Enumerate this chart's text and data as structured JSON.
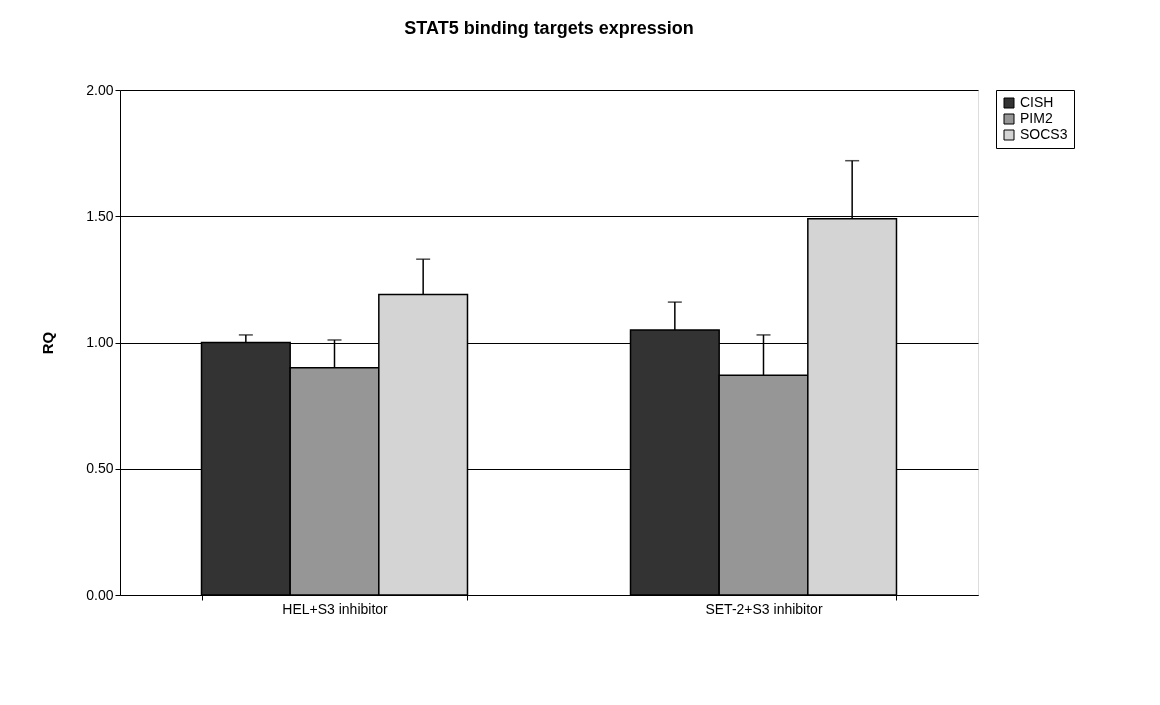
{
  "chart_data": {
    "type": "bar",
    "title": "STAT5 binding targets expression",
    "ylabel": "RQ",
    "categories": [
      "HEL+S3 inhibitor",
      "SET-2+S3 inhibitor"
    ],
    "series": [
      {
        "name": "CISH",
        "color": "#333333",
        "values": [
          1.0,
          1.05
        ],
        "errors": [
          [
            1.0,
            1.03
          ],
          [
            1.05,
            1.16
          ]
        ]
      },
      {
        "name": "PIM2",
        "color": "#969696",
        "values": [
          0.9,
          0.87
        ],
        "errors": [
          [
            0.9,
            1.01
          ],
          [
            0.87,
            1.03
          ]
        ]
      },
      {
        "name": "SOCS3",
        "color": "#d4d4d4",
        "values": [
          1.19,
          1.49
        ],
        "errors": [
          [
            1.19,
            1.33
          ],
          [
            1.49,
            1.72
          ]
        ]
      }
    ],
    "ylim": [
      0,
      2
    ],
    "yticks": [
      {
        "value": 0,
        "label": "0.00"
      },
      {
        "value": 0.5,
        "label": "0.50"
      },
      {
        "value": 1,
        "label": "1.00"
      },
      {
        "value": 1.5,
        "label": "1.50"
      },
      {
        "value": 2,
        "label": "2.00"
      }
    ],
    "grid": "y",
    "legend": "right"
  }
}
